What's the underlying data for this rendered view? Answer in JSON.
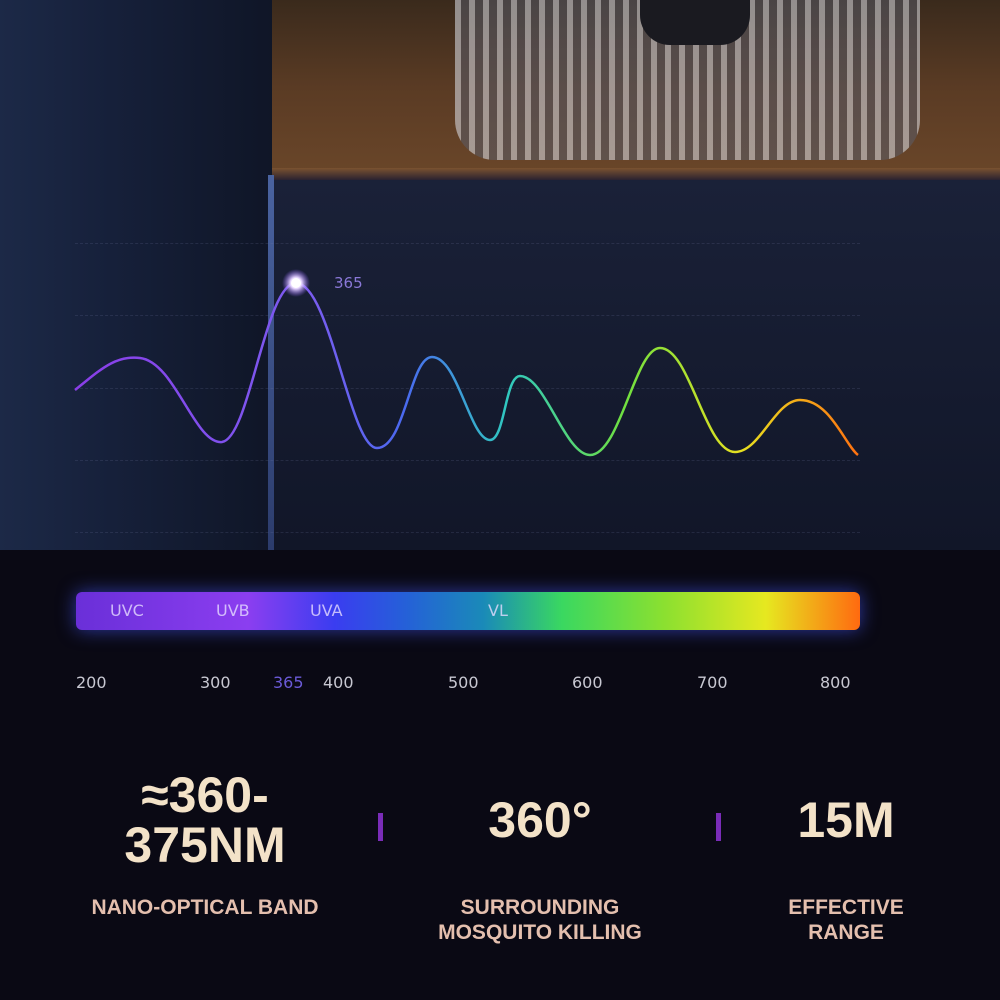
{
  "spectrum": {
    "peak_label": "365",
    "band_labels": [
      "UVC",
      "UVB",
      "UVA",
      "VL"
    ],
    "ticks": [
      "200",
      "300",
      "365",
      "400",
      "500",
      "600",
      "700",
      "800"
    ],
    "highlight_tick": "365",
    "highlight_color": "#6b5ad8"
  },
  "stats": [
    {
      "value_line1": "≈360-",
      "value_line2": "375NM",
      "caption_line1": "NANO-OPTICAL BAND",
      "caption_line2": ""
    },
    {
      "value_line1": "360°",
      "value_line2": "",
      "caption_line1": "SURROUNDING",
      "caption_line2": "MOSQUITO KILLING"
    },
    {
      "value_line1": "15M",
      "value_line2": "",
      "caption_line1": "EFFECTIVE",
      "caption_line2": "RANGE"
    }
  ],
  "colors": {
    "value": "#f3e2c8",
    "caption": "#e4bfae",
    "separator": "#7a2cb8",
    "background": "#0a0914"
  }
}
